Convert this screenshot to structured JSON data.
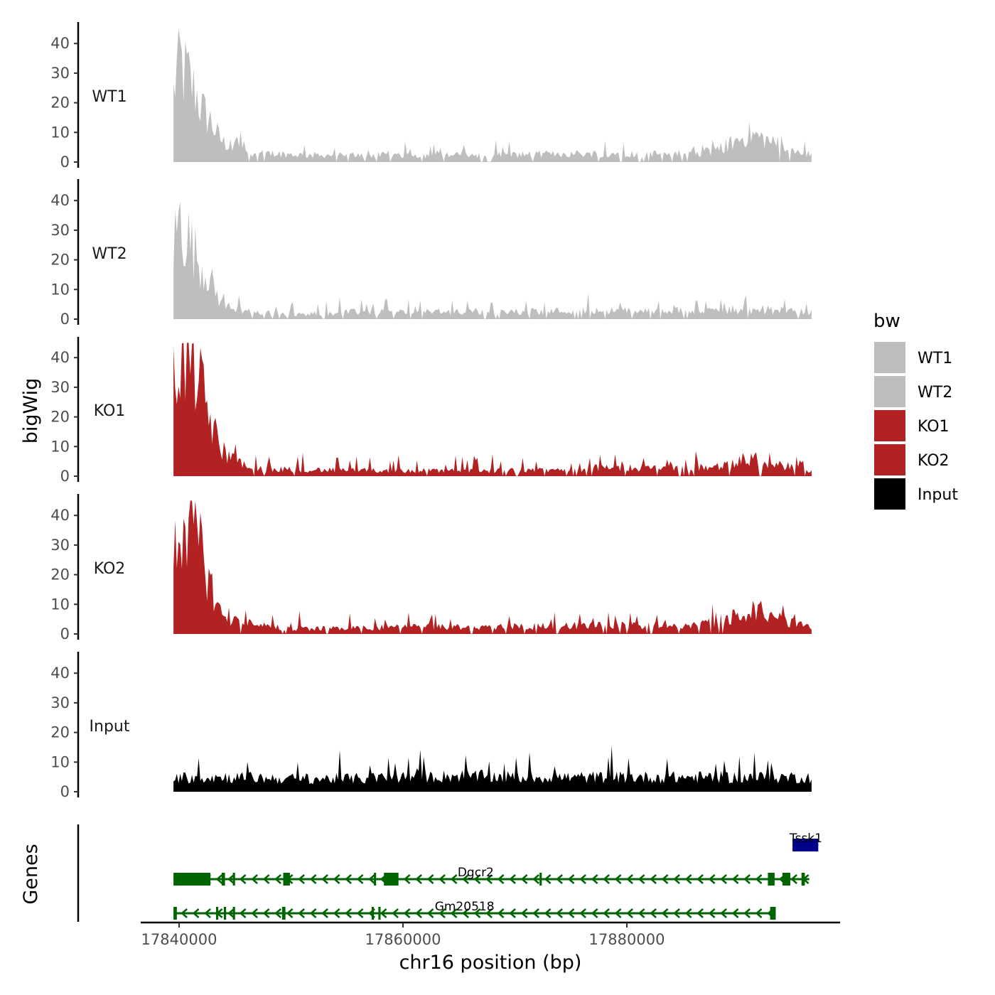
{
  "chart_data": {
    "type": "area",
    "title": "",
    "ylabel": "bigWig",
    "xlabel": "chr16 position (bp)",
    "genes_label": "Genes",
    "xlim": [
      17838500,
      17897500
    ],
    "ylim": [
      0,
      45
    ],
    "region": [
      17839500,
      17896500
    ],
    "x_ticks": [
      17840000,
      17860000,
      17880000
    ],
    "x_tick_labels": [
      "17840000",
      "17860000",
      "17880000"
    ],
    "y_ticks": [
      0,
      10,
      20,
      30,
      40
    ],
    "y_tick_labels": [
      "0",
      "10",
      "20",
      "30",
      "40"
    ],
    "legend": {
      "title": "bw",
      "entries": [
        {
          "label": "WT1",
          "color": "#bebebe"
        },
        {
          "label": "WT2",
          "color": "#bebebe"
        },
        {
          "label": "KO1",
          "color": "#b22222"
        },
        {
          "label": "KO2",
          "color": "#b22222"
        },
        {
          "label": "Input",
          "color": "#000000"
        }
      ]
    },
    "series": [
      {
        "name": "WT1",
        "color": "#bebebe",
        "profile": [
          [
            17839500,
            24
          ],
          [
            17839800,
            33
          ],
          [
            17840100,
            37
          ],
          [
            17840400,
            31
          ],
          [
            17840700,
            32
          ],
          [
            17841000,
            28
          ],
          [
            17841300,
            26
          ],
          [
            17841600,
            24
          ],
          [
            17841900,
            20
          ],
          [
            17842200,
            18
          ],
          [
            17842500,
            16
          ],
          [
            17842800,
            15
          ],
          [
            17843100,
            12
          ],
          [
            17843400,
            10
          ],
          [
            17843700,
            8
          ],
          [
            17844000,
            7
          ],
          [
            17844400,
            6
          ],
          [
            17844900,
            5
          ],
          [
            17845500,
            10
          ],
          [
            17846000,
            4
          ],
          [
            17847000,
            3
          ],
          [
            17849000,
            3
          ],
          [
            17851000,
            2.5
          ],
          [
            17855000,
            2.5
          ],
          [
            17860000,
            2.5
          ],
          [
            17868000,
            2.5
          ],
          [
            17875000,
            3
          ],
          [
            17882000,
            3
          ],
          [
            17886000,
            3
          ],
          [
            17888000,
            4
          ],
          [
            17889500,
            7
          ],
          [
            17891000,
            10
          ],
          [
            17892500,
            8
          ],
          [
            17894500,
            3.5
          ],
          [
            17896500,
            3
          ]
        ]
      },
      {
        "name": "WT2",
        "color": "#bebebe",
        "profile": [
          [
            17839500,
            26
          ],
          [
            17839800,
            32
          ],
          [
            17840100,
            36
          ],
          [
            17840400,
            30
          ],
          [
            17840700,
            31
          ],
          [
            17841000,
            27
          ],
          [
            17841300,
            25
          ],
          [
            17841600,
            22
          ],
          [
            17841900,
            20
          ],
          [
            17842200,
            17
          ],
          [
            17842500,
            17
          ],
          [
            17842800,
            14
          ],
          [
            17843100,
            11
          ],
          [
            17843400,
            9
          ],
          [
            17843700,
            6
          ],
          [
            17844000,
            5
          ],
          [
            17844500,
            4
          ],
          [
            17845000,
            3.5
          ],
          [
            17846000,
            3
          ],
          [
            17848000,
            2
          ],
          [
            17850000,
            1.5
          ],
          [
            17855000,
            2.5
          ],
          [
            17860000,
            2.5
          ],
          [
            17868000,
            2.5
          ],
          [
            17875000,
            3
          ],
          [
            17882000,
            3
          ],
          [
            17890000,
            3
          ],
          [
            17894000,
            3
          ],
          [
            17896500,
            2.5
          ]
        ]
      },
      {
        "name": "KO1",
        "color": "#b22222",
        "profile": [
          [
            17839500,
            33
          ],
          [
            17839800,
            40
          ],
          [
            17840100,
            44
          ],
          [
            17840400,
            42
          ],
          [
            17840700,
            43
          ],
          [
            17841000,
            41
          ],
          [
            17841300,
            40
          ],
          [
            17841600,
            38
          ],
          [
            17841900,
            32
          ],
          [
            17842200,
            28
          ],
          [
            17842500,
            24
          ],
          [
            17842800,
            20
          ],
          [
            17843100,
            16
          ],
          [
            17843400,
            13
          ],
          [
            17843700,
            10
          ],
          [
            17844000,
            9
          ],
          [
            17844500,
            7
          ],
          [
            17845000,
            5
          ],
          [
            17846000,
            3.5
          ],
          [
            17848000,
            2.5
          ],
          [
            17850000,
            2.5
          ],
          [
            17855000,
            2
          ],
          [
            17860000,
            2
          ],
          [
            17866000,
            2
          ],
          [
            17872000,
            2
          ],
          [
            17878000,
            3
          ],
          [
            17884000,
            3
          ],
          [
            17888000,
            3
          ],
          [
            17890000,
            5
          ],
          [
            17891500,
            6
          ],
          [
            17893000,
            4.5
          ],
          [
            17894500,
            3.5
          ],
          [
            17895500,
            6
          ],
          [
            17896000,
            2
          ],
          [
            17896500,
            1.5
          ]
        ]
      },
      {
        "name": "KO2",
        "color": "#b22222",
        "profile": [
          [
            17839500,
            28
          ],
          [
            17839800,
            33
          ],
          [
            17840100,
            38
          ],
          [
            17840400,
            44
          ],
          [
            17840700,
            40
          ],
          [
            17841000,
            36
          ],
          [
            17841300,
            38
          ],
          [
            17841600,
            34
          ],
          [
            17841900,
            30
          ],
          [
            17842200,
            28
          ],
          [
            17842500,
            22
          ],
          [
            17842800,
            18
          ],
          [
            17843100,
            14
          ],
          [
            17843400,
            11
          ],
          [
            17843700,
            8
          ],
          [
            17844000,
            6
          ],
          [
            17844500,
            5
          ],
          [
            17845500,
            4
          ],
          [
            17847000,
            3
          ],
          [
            17850000,
            2
          ],
          [
            17855000,
            2
          ],
          [
            17860000,
            2.5
          ],
          [
            17868000,
            2.5
          ],
          [
            17875000,
            3
          ],
          [
            17882000,
            3
          ],
          [
            17886000,
            3
          ],
          [
            17888000,
            4.5
          ],
          [
            17890000,
            6.5
          ],
          [
            17891500,
            9
          ],
          [
            17893000,
            6
          ],
          [
            17894500,
            4.5
          ],
          [
            17896000,
            3
          ],
          [
            17896500,
            2
          ]
        ]
      },
      {
        "name": "Input",
        "color": "#000000",
        "profile": [
          [
            17839500,
            5
          ],
          [
            17845000,
            5
          ],
          [
            17850000,
            4.5
          ],
          [
            17855000,
            4.5
          ],
          [
            17860000,
            5
          ],
          [
            17865000,
            5.5
          ],
          [
            17870000,
            5
          ],
          [
            17875000,
            5
          ],
          [
            17880000,
            5
          ],
          [
            17885000,
            5
          ],
          [
            17890000,
            5
          ],
          [
            17896500,
            5
          ]
        ]
      }
    ],
    "genes": [
      {
        "name": "Tssk1",
        "color": "#00008b",
        "strand": "+",
        "start": 17894800,
        "end": 17897100,
        "exons": [
          [
            17894800,
            17897100
          ]
        ],
        "label_x": 17896000
      },
      {
        "name": "Dgcr2",
        "color": "#006400",
        "strand": "-",
        "start": 17839500,
        "end": 17896300,
        "exons": [
          [
            17839500,
            17842800
          ],
          [
            17843800,
            17844100
          ],
          [
            17844800,
            17845000
          ],
          [
            17849300,
            17849900
          ],
          [
            17857400,
            17857600
          ],
          [
            17858300,
            17859600
          ],
          [
            17872200,
            17872400
          ],
          [
            17892600,
            17893200
          ],
          [
            17893900,
            17894600
          ],
          [
            17895600,
            17895900
          ]
        ],
        "label_x": 17866500
      },
      {
        "name": "Gm20518",
        "color": "#006400",
        "strand": "-",
        "start": 17839500,
        "end": 17893300,
        "exons": [
          [
            17839500,
            17839800
          ],
          [
            17843300,
            17843500
          ],
          [
            17844000,
            17844200
          ],
          [
            17844800,
            17845000
          ],
          [
            17849200,
            17849500
          ],
          [
            17857200,
            17857400
          ],
          [
            17857800,
            17858000
          ],
          [
            17892800,
            17893300
          ]
        ],
        "label_x": 17865500
      }
    ]
  }
}
